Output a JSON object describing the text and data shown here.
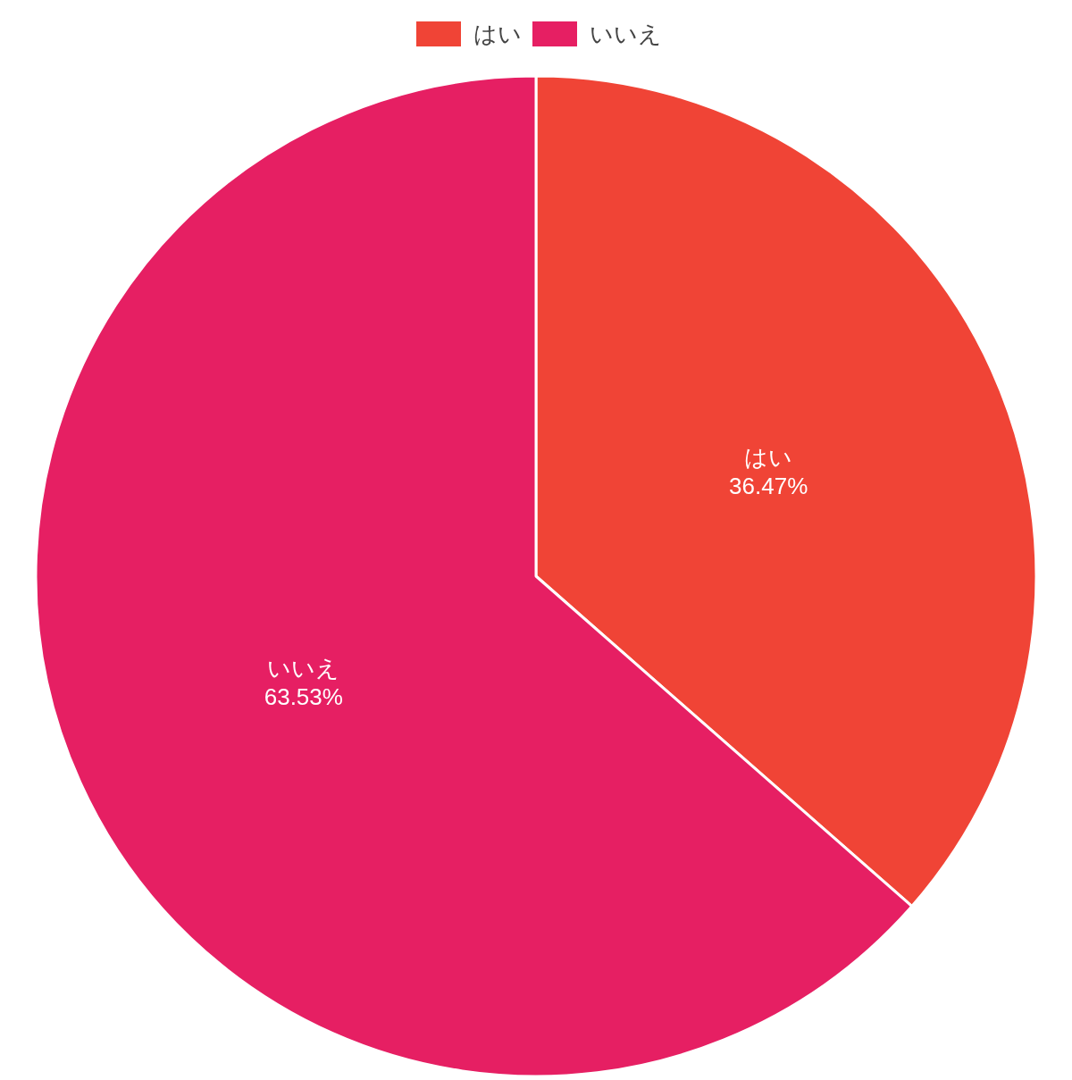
{
  "chart_data": {
    "type": "pie",
    "categories": [
      "はい",
      "いいえ"
    ],
    "values": [
      36.47,
      63.53
    ],
    "colors": [
      "#f04436",
      "#e61f63"
    ],
    "value_labels": [
      "36.47%",
      "63.53%"
    ],
    "legend": "top"
  }
}
